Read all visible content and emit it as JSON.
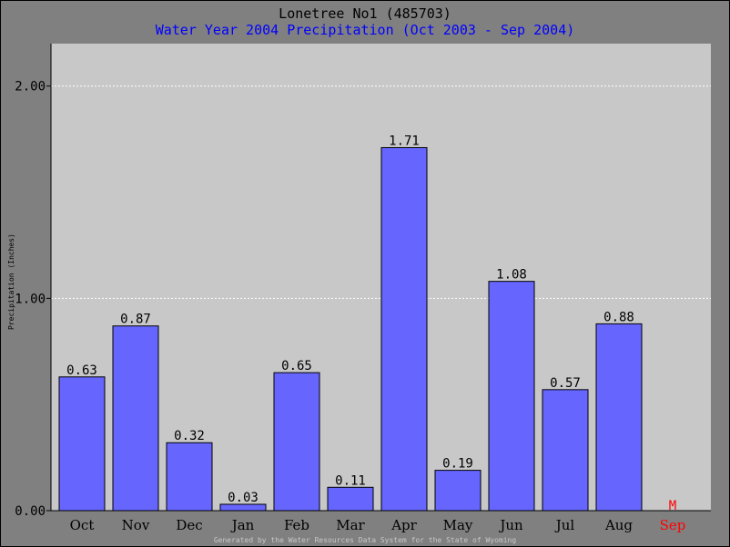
{
  "header": {
    "title": "Lonetree No1 (485703)",
    "subtitle": "Water Year 2004 Precipitation (Oct 2003 - Sep 2004)"
  },
  "footer_text": "Generated by the Water Resources Data System for the State of Wyoming",
  "colors": {
    "bar": "#6666ff",
    "plot_bg": "#c8c8c8",
    "page_bg": "#808080",
    "subtitle": "#0000ff",
    "missing": "#ff0000"
  },
  "chart_data": {
    "type": "bar",
    "title": "Lonetree No1 (485703)",
    "subtitle": "Water Year 2004 Precipitation (Oct 2003 - Sep 2004)",
    "xlabel": "",
    "ylabel": "Precipitation (Inches)",
    "categories": [
      "Oct",
      "Nov",
      "Dec",
      "Jan",
      "Feb",
      "Mar",
      "Apr",
      "May",
      "Jun",
      "Jul",
      "Aug",
      "Sep"
    ],
    "values": [
      0.63,
      0.87,
      0.32,
      0.03,
      0.65,
      0.11,
      1.71,
      0.19,
      1.08,
      0.57,
      0.88,
      null
    ],
    "value_labels": [
      "0.63",
      "0.87",
      "0.32",
      "0.03",
      "0.65",
      "0.11",
      "1.71",
      "0.19",
      "1.08",
      "0.57",
      "0.88",
      "M"
    ],
    "missing_categories": [
      "Sep"
    ],
    "yticks": [
      {
        "value": 0,
        "label": "0.00"
      },
      {
        "value": 1,
        "label": "1.00"
      },
      {
        "value": 2,
        "label": "2.00"
      }
    ],
    "ylim": [
      0,
      2.2
    ],
    "grid": true,
    "legend": "none"
  }
}
